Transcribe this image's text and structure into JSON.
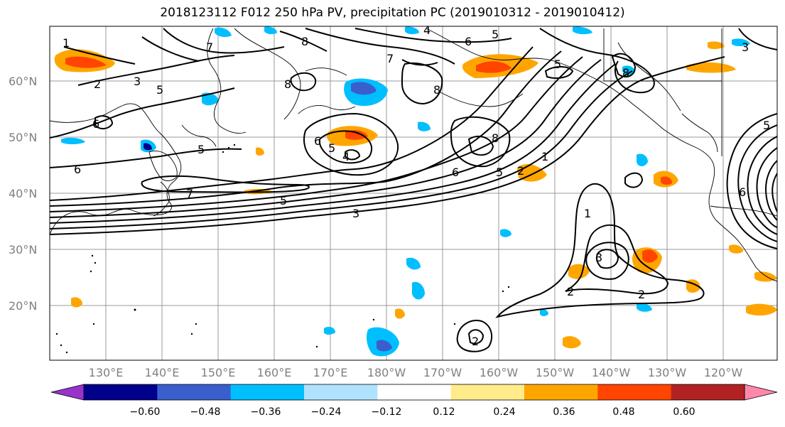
{
  "title": "2018123112 F012 250 hPa PV, precipitation PC (2019010312 - 2019010412)",
  "map": {
    "lat_labels": [
      "60°N",
      "50°N",
      "40°N",
      "30°N",
      "20°N"
    ],
    "lon_labels": [
      "130°E",
      "140°E",
      "150°E",
      "160°E",
      "170°E",
      "180°W",
      "170°W",
      "160°W",
      "150°W",
      "140°W",
      "130°W",
      "120°W"
    ],
    "contour_labels": [
      "1",
      "2",
      "3",
      "5",
      "7",
      "8",
      "6",
      "5",
      "4",
      "6",
      "5",
      "7",
      "8",
      "6",
      "5",
      "4",
      "7",
      "5",
      "3",
      "6",
      "5",
      "8",
      "1",
      "2",
      "8",
      "6",
      "5",
      "3",
      "1",
      "2",
      "2",
      "2",
      "3",
      "5",
      "8",
      "6"
    ],
    "colors": {
      "land_outline": "#000000",
      "grid": "#808080",
      "contour": "#000000"
    }
  },
  "colorbar": {
    "colors": [
      "#9932cc",
      "#00008b",
      "#3a5fcd",
      "#00bfff",
      "#b0e2ff",
      "#ffffff",
      "#ffeb8a",
      "#ffa500",
      "#ff4500",
      "#b22222",
      "#ff88aa"
    ],
    "ticks": [
      "−0.60",
      "−0.48",
      "−0.36",
      "−0.24",
      "−0.12",
      "0.12",
      "0.24",
      "0.36",
      "0.48",
      "0.60"
    ]
  }
}
